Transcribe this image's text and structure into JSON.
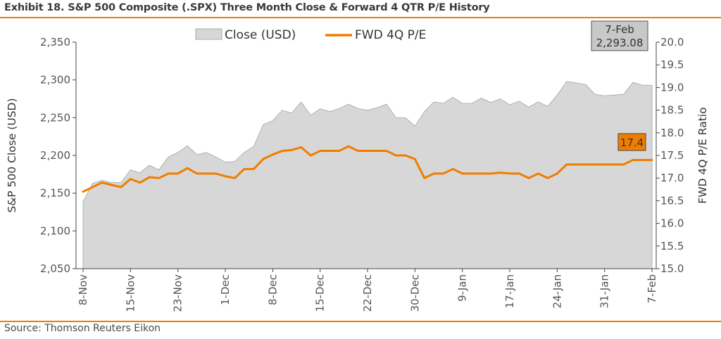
{
  "exhibit_title": "Exhibit 18. S&P 500 Composite (.SPX) Three Month Close & Forward 4 QTR P/E History",
  "source": "Source: Thomson Reuters Eikon",
  "colors": {
    "area_fill": "#d7d7d7",
    "area_edge": "#9a9a9a",
    "pe_line": "#f07d00",
    "rule": "#f07d00",
    "axis": "#444444"
  },
  "chart_data": {
    "type": "area",
    "legend_position": "top-center",
    "grid": false,
    "xlabel": "",
    "ylabel": "S&P 500 Close (USD)",
    "y2label": "FWD 4Q P/E Ratio",
    "ylim": [
      2050,
      2350
    ],
    "y2lim": [
      15.0,
      20.0
    ],
    "x_tick_labels": [
      "8-Nov",
      "15-Nov",
      "23-Nov",
      "1-Dec",
      "8-Dec",
      "15-Dec",
      "22-Dec",
      "30-Dec",
      "9-Jan",
      "17-Jan",
      "24-Jan",
      "31-Jan",
      "7-Feb"
    ],
    "y_tick_labels": [
      "2,050",
      "2,100",
      "2,150",
      "2,200",
      "2,250",
      "2,300",
      "2,350"
    ],
    "y2_tick_labels": [
      "15.0",
      "15.5",
      "16.0",
      "16.5",
      "17.0",
      "17.5",
      "18.0",
      "18.5",
      "19.0",
      "19.5",
      "20.0"
    ],
    "series": [
      {
        "name": "Close (USD)",
        "type": "area",
        "axis": "left",
        "values": [
          2139,
          2163,
          2167,
          2164,
          2164,
          2181,
          2177,
          2187,
          2181,
          2198,
          2204,
          2213,
          2201,
          2204,
          2198,
          2191,
          2192,
          2204,
          2212,
          2241,
          2246,
          2260,
          2256,
          2271,
          2253,
          2262,
          2258,
          2262,
          2268,
          2262,
          2260,
          2263,
          2268,
          2250,
          2250,
          2239,
          2258,
          2271,
          2269,
          2277,
          2269,
          2269,
          2276,
          2270,
          2275,
          2267,
          2272,
          2264,
          2271,
          2265,
          2280,
          2298,
          2296,
          2294,
          2281,
          2279,
          2280,
          2281,
          2297,
          2293,
          2293
        ]
      },
      {
        "name": "FWD 4Q P/E",
        "type": "line",
        "axis": "right",
        "values": [
          16.7,
          16.8,
          16.9,
          16.85,
          16.8,
          16.98,
          16.9,
          17.02,
          17.0,
          17.1,
          17.1,
          17.22,
          17.1,
          17.1,
          17.1,
          17.04,
          17.0,
          17.2,
          17.2,
          17.42,
          17.52,
          17.6,
          17.62,
          17.68,
          17.5,
          17.6,
          17.6,
          17.6,
          17.7,
          17.6,
          17.6,
          17.6,
          17.6,
          17.5,
          17.5,
          17.42,
          17.0,
          17.1,
          17.1,
          17.2,
          17.1,
          17.1,
          17.1,
          17.1,
          17.12,
          17.1,
          17.1,
          17.0,
          17.1,
          17.0,
          17.1,
          17.3,
          17.3,
          17.3,
          17.3,
          17.3,
          17.3,
          17.3,
          17.4,
          17.4,
          17.4
        ]
      }
    ],
    "callouts": {
      "close": {
        "date": "7-Feb",
        "value": "2,293.08"
      },
      "pe": {
        "value": "17.4"
      }
    }
  }
}
